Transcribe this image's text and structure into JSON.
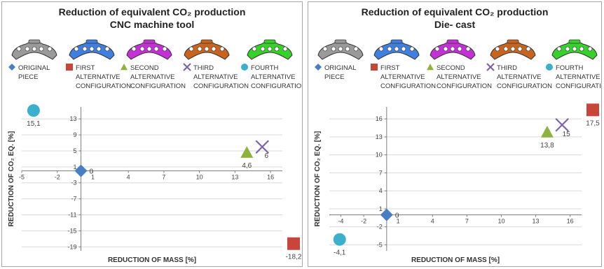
{
  "colors": {
    "original": "#4a7ec2",
    "first": "#c8453a",
    "second": "#8db33e",
    "third": "#7d64a8",
    "fourth": "#3bb0cc",
    "grid": "#d9d9d9",
    "axis": "#7f7f7f",
    "piece_original": "#9a9a9a",
    "piece_first": "#3f7fe0",
    "piece_second": "#c530d6",
    "piece_third": "#c8641e",
    "piece_fourth": "#36d12a"
  },
  "legend_icons": [
    "diamond",
    "square",
    "triangle",
    "x-mark",
    "circle"
  ],
  "legend_labels": [
    "ORIGINAL\nPIECE",
    "FIRST\nALTERNATIVE\nCONFIGURATION",
    "SECOND\nALTERNATIVE\nCONFIGURATION",
    "THIRD\nALTERNATIVE\nCONFIGURATION",
    "FOURTH\nALTERNATIVE\nCONFIGURATION"
  ],
  "chart_data": [
    {
      "type": "scatter",
      "title": "Reduction of equivalent CO₂  production",
      "subtitle": "CNC machine tool",
      "xlabel": "REDUCTION OF MASS [%]",
      "ylabel": "REDUCTION OF CO₂ EQ. [%]",
      "xlim": [
        -5,
        17
      ],
      "ylim": [
        -19,
        13
      ],
      "x_ticks": [
        "-5",
        "-2",
        "1",
        "4",
        "7",
        "10",
        "13",
        "16"
      ],
      "y_ticks": [
        "13",
        "9",
        "5",
        "1",
        "-3",
        "-7",
        "-11",
        "-15",
        "-19"
      ],
      "grid": true,
      "series": [
        {
          "name": "ORIGINAL PIECE",
          "marker": "diamond",
          "x": 0,
          "y": 0,
          "label": "0"
        },
        {
          "name": "FIRST ALTERNATIVE CONFIGURATION",
          "marker": "square",
          "x": 18.2,
          "y": -18.2,
          "label": "-18,2"
        },
        {
          "name": "SECOND ALTERNATIVE CONFIGURATION",
          "marker": "triangle",
          "x": 14,
          "y": 4.6,
          "label": "4,6"
        },
        {
          "name": "THIRD ALTERNATIVE CONFIGURATION",
          "marker": "x",
          "x": 15.3,
          "y": 6,
          "label": "6"
        },
        {
          "name": "FOURTH ALTERNATIVE CONFIGURATION",
          "marker": "circle",
          "x": -4,
          "y": 15.1,
          "label": "15,1"
        }
      ]
    },
    {
      "type": "scatter",
      "title": "Reduction of equivalent CO₂ production",
      "subtitle": "Die- cast",
      "xlabel": "REDUCTION OF MASS [%]",
      "ylabel": "REDUCTION OF CO₂ EQ. [%]",
      "xlim": [
        -5,
        17
      ],
      "ylim": [
        -5,
        16
      ],
      "x_ticks": [
        "-4",
        "-2",
        "1",
        "4",
        "7",
        "10",
        "13",
        "16"
      ],
      "y_ticks": [
        "16",
        "13",
        "10",
        "7",
        "4",
        "1",
        "-2",
        "-5"
      ],
      "grid": true,
      "series": [
        {
          "name": "ORIGINAL PIECE",
          "marker": "diamond",
          "x": 0,
          "y": 0,
          "label": "0"
        },
        {
          "name": "FIRST ALTERNATIVE CONFIGURATION",
          "marker": "square",
          "x": 18.5,
          "y": 17.5,
          "label": "17,5"
        },
        {
          "name": "SECOND ALTERNATIVE CONFIGURATION",
          "marker": "triangle",
          "x": 14,
          "y": 13.8,
          "label": "13,8"
        },
        {
          "name": "THIRD ALTERNATIVE CONFIGURATION",
          "marker": "x",
          "x": 15.3,
          "y": 15,
          "label": "15"
        },
        {
          "name": "FOURTH ALTERNATIVE CONFIGURATION",
          "marker": "circle",
          "x": -4.1,
          "y": -4.1,
          "label": "-4,1"
        }
      ]
    }
  ]
}
